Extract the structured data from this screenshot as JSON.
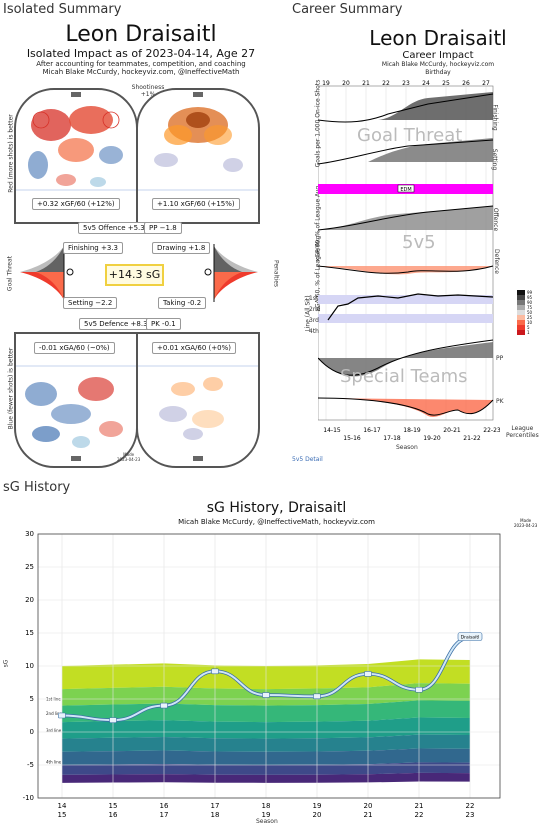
{
  "sections": {
    "isolated_label": "Isolated Summary",
    "career_label": "Career Summary",
    "history_label": "sG History"
  },
  "isolated": {
    "player": "Leon Draisaitl",
    "subtitle": "Isolated Impact as of 2023-04-14, Age 27",
    "note1": "After accounting for teammates, competition, and coaching",
    "note2": "Micah Blake McCurdy, hockeyviz.com, @IneffectiveMath",
    "shootiness_label": "Shootiness",
    "shootiness_value": "+1%",
    "red_axis": "Red (more shots) is better",
    "blue_axis": "Blue (fewer shots) is better",
    "goal_threat_axis": "Goal Threat",
    "penalties_axis": "Penalties",
    "xgf_left": "+0.32 xGF/60 (+12%)",
    "xgf_right": "+1.10 xGF/60 (+15%)",
    "xga_left": "-0.01 xGA/60 (~0%)",
    "xga_right": "+0.01 xGA/60 (+0%)",
    "total_sg": "+14.3 sG",
    "contributions": {
      "offence_5v5": "5v5 Offence +5.3",
      "pp": "PP −1.8",
      "finishing": "Finishing +3.3",
      "drawing": "Drawing +1.8",
      "setting": "Setting −2.2",
      "taking": "Taking -0.2",
      "defence_5v5": "5v5 Defence +8.3",
      "pk": "PK -0.1"
    },
    "stamp": "Made\n2023-04-23"
  },
  "career": {
    "player": "Leon Draisaitl",
    "subtitle": "Career Impact",
    "credit": "Micah Blake McCurdy, hockeyviz.com",
    "birthday_label": "Birthday",
    "ages": [
      "19",
      "20",
      "21",
      "22",
      "23",
      "24",
      "25",
      "26",
      "27"
    ],
    "bands": {
      "goal_threat": "Goal Threat",
      "fivev5": "5v5",
      "special_teams": "Special Teams"
    },
    "rows": {
      "finishing": "Finishing",
      "setting": "Setting",
      "offence": "Offence",
      "defence": "Defence",
      "pp": "PP",
      "pk": "PK"
    },
    "y_labels": {
      "goals": "Goals per 1,000 On-ice Shots",
      "xgf": "xGF/60, % of League Avg",
      "xga": "xGA/60, % of League Avg",
      "line": "Line (All Sit)"
    },
    "line_ticks": [
      "1st",
      "2nd",
      "3rd",
      "4th"
    ],
    "edm_tag": "EDM",
    "seasons_top": [
      "14-15",
      "16-17",
      "18-19",
      "20-21",
      "22-23"
    ],
    "seasons_bottom": [
      "15-16",
      "17-18",
      "19-20",
      "21-22"
    ],
    "xlabel": "Season",
    "percentile_ticks": [
      "99",
      "95",
      "90",
      "75",
      "50",
      "25",
      "10",
      "5",
      "1"
    ],
    "percentile_label": "League\nPercentiles",
    "link": "5v5 Detail"
  },
  "chart_data": {
    "type": "line",
    "title": "sG History, Draisaitl",
    "subtitle": "Micah Blake McCurdy, @IneffectiveMath, hockeyviz.com",
    "stamp": "Made\n2023-04-23",
    "xlabel": "Season",
    "ylabel": "sG",
    "ylim": [
      -10,
      30
    ],
    "yticks": [
      -10,
      -5,
      0,
      5,
      10,
      15,
      20,
      25,
      30
    ],
    "categories": [
      "14-15",
      "15-16",
      "16-17",
      "17-18",
      "18-19",
      "19-20",
      "20-21",
      "21-22",
      "22-23"
    ],
    "series": [
      {
        "name": "",
        "values": [
          2.5,
          1.8,
          4.0,
          9.2,
          5.6,
          5.4,
          8.8,
          6.4,
          14.3
        ]
      }
    ],
    "end_label": "Draisaitl",
    "band_labels": [
      "1st line",
      "2nd line",
      "3rd line",
      "4th line"
    ],
    "grid": true,
    "palette": [
      "#c2de23",
      "#7cd250",
      "#35b779",
      "#1f9e89",
      "#26828e",
      "#31688e",
      "#3e4989",
      "#482878"
    ]
  }
}
